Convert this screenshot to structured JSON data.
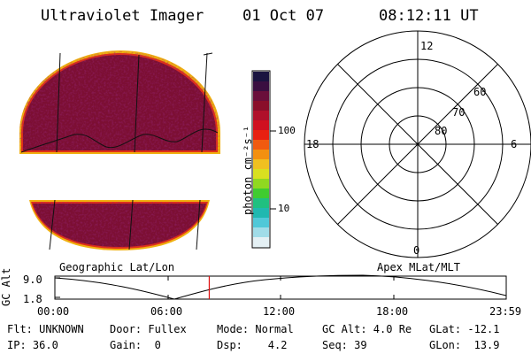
{
  "header": {
    "instrument": "Ultraviolet Imager",
    "date": "01 Oct 07",
    "time": "08:12:11 UT"
  },
  "image_panel": {
    "caption": "Geographic Lat/Lon"
  },
  "colorbar": {
    "label": "photon cm⁻²s⁻¹",
    "ticks": [
      "100",
      "10"
    ],
    "colors": [
      "#1a1440",
      "#3a0f40",
      "#6a0f3a",
      "#8a0f2a",
      "#b0102a",
      "#d01020",
      "#e82010",
      "#f05a10",
      "#f39010",
      "#f0c020",
      "#d8e020",
      "#90d820",
      "#40cc30",
      "#20c080",
      "#20b8b0",
      "#50c8d8",
      "#a0dce8",
      "#e4f0f4"
    ]
  },
  "polar": {
    "caption": "Apex MLat/MLT",
    "mlt_labels": {
      "top": "12",
      "left": "18",
      "right": "6",
      "bottom": "0"
    },
    "lat_labels": [
      "60",
      "70",
      "80"
    ]
  },
  "timeline": {
    "ylabel": "GC Alt",
    "ymax": "9.0",
    "ymin": "1.8",
    "xticks": [
      "00:00",
      "06:00",
      "12:00",
      "18:00",
      "23:59"
    ],
    "marker_time_hours": 8.203
  },
  "footer": {
    "row1": {
      "flt": "Flt: UNKNOWN",
      "door": "Door: Fullex",
      "mode": "Mode: Normal",
      "gcalt": "GC Alt: 4.0 Re",
      "glat": "GLat: -12.1"
    },
    "row2": {
      "ip": "IP: 36.0",
      "gain": "Gain:  0",
      "dsp": "Dsp:    4.2",
      "seq": "Seq: 39",
      "glon": "GLon:  13.9"
    }
  }
}
